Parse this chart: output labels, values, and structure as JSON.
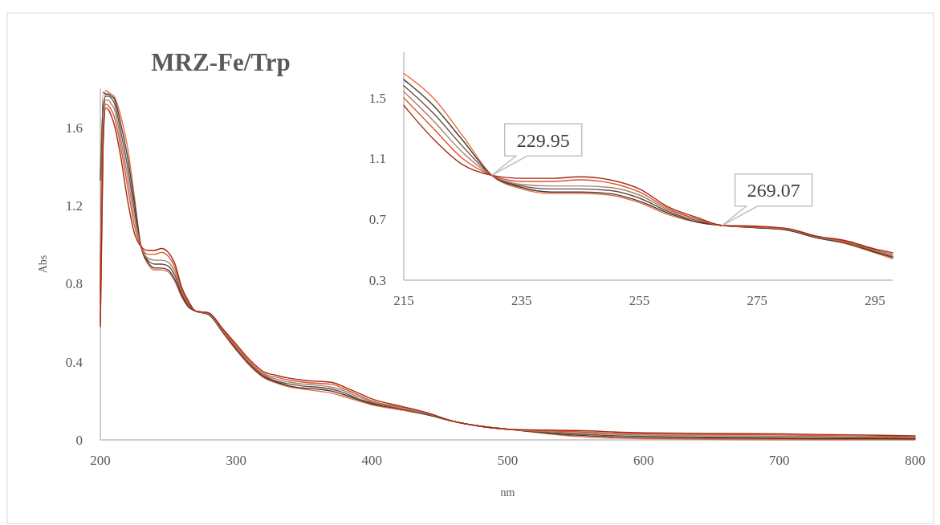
{
  "chart_data": [
    {
      "type": "line",
      "title": "MRZ-Fe/Trp",
      "xlabel": "nm",
      "ylabel": "Abs",
      "xlim": [
        200,
        800
      ],
      "ylim": [
        0,
        1.8
      ],
      "xticks": [
        200,
        300,
        400,
        500,
        600,
        700,
        800
      ],
      "yticks": [
        0,
        0.4,
        0.8,
        1.2,
        1.6
      ],
      "marker": "none",
      "line_style": "solid",
      "x": [
        200,
        202,
        204,
        206,
        208,
        210,
        215,
        220,
        225,
        230,
        235,
        240,
        245,
        250,
        255,
        260,
        265,
        270,
        280,
        290,
        300,
        310,
        320,
        330,
        340,
        350,
        360,
        370,
        380,
        390,
        400,
        420,
        440,
        460,
        480,
        500,
        550,
        600,
        650,
        700,
        750,
        800
      ],
      "series": [
        {
          "color": "#ee6a36",
          "values": [
            0.6,
            1.5,
            1.79,
            1.78,
            1.77,
            1.76,
            1.66,
            1.5,
            1.25,
            0.99,
            0.9,
            0.87,
            0.87,
            0.86,
            0.81,
            0.73,
            0.68,
            0.66,
            0.64,
            0.55,
            0.46,
            0.38,
            0.32,
            0.29,
            0.27,
            0.26,
            0.25,
            0.24,
            0.22,
            0.2,
            0.18,
            0.155,
            0.13,
            0.095,
            0.07,
            0.055,
            0.018,
            0.006,
            0.003,
            0.001,
            0.001,
            0.001
          ]
        },
        {
          "color": "#3f3a3a",
          "values": [
            0.75,
            1.78,
            1.77,
            1.77,
            1.76,
            1.75,
            1.62,
            1.45,
            1.22,
            0.99,
            0.91,
            0.88,
            0.88,
            0.87,
            0.82,
            0.74,
            0.68,
            0.66,
            0.64,
            0.555,
            0.465,
            0.385,
            0.325,
            0.295,
            0.275,
            0.265,
            0.26,
            0.25,
            0.23,
            0.205,
            0.185,
            0.16,
            0.13,
            0.095,
            0.07,
            0.055,
            0.024,
            0.012,
            0.009,
            0.007,
            0.006,
            0.005
          ]
        },
        {
          "color": "#6b4a40",
          "values": [
            1.33,
            1.7,
            1.76,
            1.76,
            1.75,
            1.73,
            1.58,
            1.4,
            1.18,
            0.99,
            0.92,
            0.9,
            0.9,
            0.89,
            0.84,
            0.75,
            0.69,
            0.66,
            0.645,
            0.56,
            0.47,
            0.39,
            0.33,
            0.3,
            0.285,
            0.275,
            0.27,
            0.26,
            0.24,
            0.21,
            0.19,
            0.16,
            0.135,
            0.095,
            0.07,
            0.055,
            0.03,
            0.018,
            0.015,
            0.013,
            0.011,
            0.009
          ]
        },
        {
          "color": "#9c8472",
          "values": [
            0.9,
            1.6,
            1.74,
            1.74,
            1.72,
            1.7,
            1.54,
            1.35,
            1.14,
            0.99,
            0.93,
            0.92,
            0.92,
            0.91,
            0.86,
            0.76,
            0.7,
            0.66,
            0.645,
            0.56,
            0.475,
            0.395,
            0.335,
            0.31,
            0.295,
            0.285,
            0.28,
            0.27,
            0.25,
            0.22,
            0.195,
            0.165,
            0.135,
            0.095,
            0.07,
            0.055,
            0.036,
            0.024,
            0.021,
            0.019,
            0.016,
            0.013
          ]
        },
        {
          "color": "#e0522a",
          "values": [
            0.7,
            1.55,
            1.72,
            1.71,
            1.69,
            1.66,
            1.5,
            1.3,
            1.1,
            0.99,
            0.95,
            0.95,
            0.96,
            0.94,
            0.88,
            0.77,
            0.7,
            0.66,
            0.65,
            0.565,
            0.48,
            0.4,
            0.34,
            0.32,
            0.305,
            0.295,
            0.29,
            0.285,
            0.26,
            0.23,
            0.2,
            0.17,
            0.14,
            0.095,
            0.07,
            0.055,
            0.042,
            0.03,
            0.027,
            0.025,
            0.021,
            0.017
          ]
        },
        {
          "color": "#9e2a16",
          "values": [
            0.58,
            1.5,
            1.7,
            1.69,
            1.66,
            1.62,
            1.45,
            1.23,
            1.06,
            0.99,
            0.97,
            0.97,
            0.98,
            0.96,
            0.9,
            0.78,
            0.71,
            0.66,
            0.65,
            0.57,
            0.49,
            0.41,
            0.35,
            0.33,
            0.315,
            0.305,
            0.3,
            0.295,
            0.27,
            0.24,
            0.21,
            0.175,
            0.14,
            0.095,
            0.07,
            0.055,
            0.048,
            0.036,
            0.033,
            0.031,
            0.026,
            0.021
          ]
        }
      ]
    },
    {
      "type": "line",
      "xlim": [
        215,
        298
      ],
      "ylim": [
        0.3,
        1.8
      ],
      "xticks": [
        215,
        235,
        255,
        275,
        295
      ],
      "yticks": [
        0.3,
        0.7,
        1.1,
        1.5
      ],
      "marker": "none",
      "line_style": "solid",
      "annotations": [
        {
          "text": "229.95",
          "x": 229.95,
          "y": 0.99
        },
        {
          "text": "269.07",
          "x": 269.07,
          "y": 0.66
        }
      ],
      "x": [
        215,
        220,
        225,
        229.95,
        235,
        240,
        245,
        250,
        255,
        260,
        265,
        269.07,
        275,
        280,
        285,
        290,
        295,
        298
      ],
      "series": [
        {
          "color": "#ee6a36",
          "values": [
            1.66,
            1.5,
            1.25,
            0.99,
            0.9,
            0.87,
            0.87,
            0.86,
            0.81,
            0.73,
            0.68,
            0.66,
            0.645,
            0.63,
            0.58,
            0.54,
            0.48,
            0.44
          ]
        },
        {
          "color": "#3f3a3a",
          "values": [
            1.62,
            1.45,
            1.22,
            0.99,
            0.91,
            0.88,
            0.88,
            0.87,
            0.82,
            0.74,
            0.68,
            0.66,
            0.645,
            0.63,
            0.58,
            0.545,
            0.485,
            0.45
          ]
        },
        {
          "color": "#6b4a40",
          "values": [
            1.58,
            1.4,
            1.18,
            0.99,
            0.92,
            0.9,
            0.9,
            0.89,
            0.84,
            0.75,
            0.69,
            0.66,
            0.65,
            0.635,
            0.585,
            0.55,
            0.49,
            0.455
          ]
        },
        {
          "color": "#9c8472",
          "values": [
            1.54,
            1.35,
            1.14,
            0.99,
            0.93,
            0.92,
            0.92,
            0.91,
            0.86,
            0.76,
            0.7,
            0.66,
            0.65,
            0.635,
            0.585,
            0.55,
            0.495,
            0.46
          ]
        },
        {
          "color": "#e0522a",
          "values": [
            1.5,
            1.3,
            1.1,
            0.99,
            0.95,
            0.95,
            0.96,
            0.94,
            0.88,
            0.77,
            0.7,
            0.66,
            0.65,
            0.64,
            0.59,
            0.555,
            0.5,
            0.47
          ]
        },
        {
          "color": "#9e2a16",
          "values": [
            1.45,
            1.23,
            1.06,
            0.99,
            0.97,
            0.97,
            0.98,
            0.96,
            0.9,
            0.78,
            0.71,
            0.66,
            0.655,
            0.64,
            0.59,
            0.56,
            0.505,
            0.48
          ]
        }
      ]
    }
  ]
}
